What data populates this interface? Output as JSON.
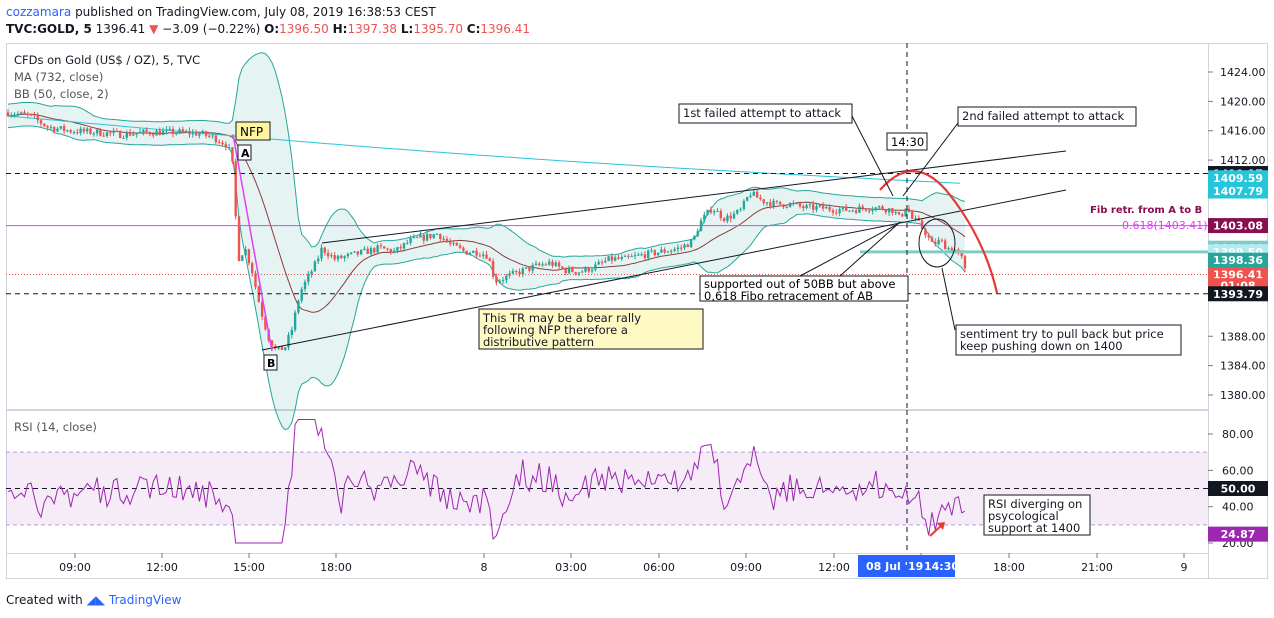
{
  "header": {
    "user": "cozzamara",
    "published": "published on TradingView.com, July 08, 2019 16:38:53 CEST",
    "symbol": "TVC:GOLD, 5",
    "last": "1396.41",
    "change_arrow": "▼",
    "change": "−3.09 (−0.22%)",
    "ohlc": {
      "o_label": "O:",
      "o": "1396.50",
      "h_label": "H:",
      "h": "1397.38",
      "l_label": "L:",
      "l": "1395.70",
      "c_label": "C:",
      "c": "1396.41"
    }
  },
  "legend": {
    "title": "CFDs on Gold (US$ / OZ), 5, TVC",
    "ma": "MA (732, close)",
    "bb": "BB (50, close, 2)",
    "rsi": "RSI (14, close)"
  },
  "price_axis": {
    "ticks": [
      "1424.00",
      "1420.00",
      "1416.00",
      "1412.00",
      "1388.00",
      "1384.00",
      "1380.00"
    ],
    "tags": [
      {
        "label": "1410.17",
        "color": "#131722",
        "value": 1410.17
      },
      {
        "label": "1409.59",
        "color": "#26c6da",
        "value": 1409.59
      },
      {
        "label": "1407.79",
        "color": "#26c6da",
        "value": 1407.79
      },
      {
        "label": "1403.08",
        "color": "#880e4f",
        "value": 1403.08
      },
      {
        "label": "1400.00",
        "color": "#80cbc4",
        "value": 1400.0
      },
      {
        "label": "1399.50",
        "color": "#b2ebf2",
        "value": 1399.5
      },
      {
        "label": "1398.36",
        "color": "#26a69a",
        "value": 1398.36
      },
      {
        "label": "1396.41",
        "color": "#ef5350",
        "value": 1396.41
      },
      {
        "label": "01:08",
        "color": "#ef5350",
        "value": 1394.9
      },
      {
        "label": "1393.79",
        "color": "#131722",
        "value": 1393.79
      }
    ]
  },
  "rsi_axis": {
    "ticks": [
      "80.00",
      "60.00",
      "40.00",
      "20.00"
    ],
    "tags": [
      {
        "label": "50.00",
        "color": "#131722",
        "value": 50
      },
      {
        "label": "24.87",
        "color": "#9c27b0",
        "value": 24.87
      }
    ]
  },
  "time_axis": {
    "labels": [
      "09:00",
      "12:00",
      "15:00",
      "18:00",
      "8",
      "03:00",
      "06:00",
      "09:00",
      "12:00",
      "15:00",
      "18:00",
      "21:00",
      "9"
    ],
    "highlight_date": "08 Jul '19",
    "highlight_time": "14:30"
  },
  "annotations": {
    "nfp": "NFP",
    "point_a": "A",
    "point_b": "B",
    "time_label": "14:30",
    "first_fail": "1st failed attempt to attack",
    "second_fail": "2nd failed attempt to attack",
    "fib_title": "Fib retr. from A to B",
    "fib_level": "0.618(1403.41)",
    "support_line1": "supported out of 50BB but above",
    "support_line2": "0,618 Fibo retracement of AB",
    "tr_line1": "This TR may be a bear rally",
    "tr_line2": "following NFP therefore a",
    "tr_line3": "distributive pattern",
    "sentiment_line1": "sentiment try to pull back but price",
    "sentiment_line2": "keep pushing down on 1400",
    "rsi_line1": "RSI diverging on",
    "rsi_line2": "psycological",
    "rsi_line3": "support at 1400"
  },
  "footer": {
    "created": "Created with",
    "brand": "TradingView"
  },
  "chart_data": {
    "type": "line",
    "title": "CFDs on Gold (US$ / OZ), 5, TVC",
    "x": [
      "09:00",
      "12:00",
      "15:00",
      "18:00",
      "8",
      "03:00",
      "06:00",
      "09:00",
      "12:00",
      "14:30"
    ],
    "series": [
      {
        "name": "TVC:GOLD",
        "values": [
          1418.5,
          1415.5,
          1412.0,
          1399.0,
          1398.0,
          1398.5,
          1400.0,
          1406.0,
          1405.0,
          1396.4
        ]
      },
      {
        "name": "RSI (14, close)",
        "values": [
          40,
          55,
          30,
          45,
          60,
          40,
          45,
          70,
          55,
          25
        ]
      }
    ],
    "ylim": [
      1378,
      1426
    ],
    "rsi_ylim": [
      15,
      90
    ],
    "colors": {
      "up": "#26a69a",
      "down": "#ef5350",
      "bb": "#26a69a",
      "ma": "#26c6da",
      "rsi": "#9c27b0",
      "fib": "#e040fb"
    }
  }
}
